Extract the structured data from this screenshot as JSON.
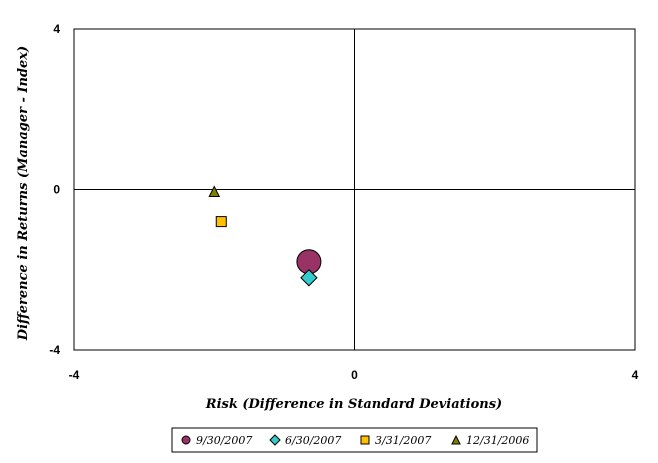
{
  "chart_data": {
    "type": "scatter",
    "title": "",
    "xlabel": "Risk (Difference in Standard Deviations)",
    "ylabel": "Difference in Returns (Manager - Index)",
    "xlim": [
      -4,
      4
    ],
    "ylim": [
      -4,
      4
    ],
    "x_ticks": [
      "-4",
      "0",
      "4"
    ],
    "y_ticks": [
      "4",
      "0",
      "-4"
    ],
    "grid": false,
    "legend_position": "bottom",
    "series": [
      {
        "name": "9/30/2007",
        "marker": "circle",
        "color": "#993366",
        "x": [
          -0.65
        ],
        "y": [
          -1.8
        ]
      },
      {
        "name": "6/30/2007",
        "marker": "diamond",
        "color": "#33CCCC",
        "x": [
          -0.65
        ],
        "y": [
          -2.2
        ]
      },
      {
        "name": "3/31/2007",
        "marker": "square",
        "color": "#FFC000",
        "x": [
          -1.9
        ],
        "y": [
          -0.8
        ]
      },
      {
        "name": "12/31/2006",
        "marker": "triangle",
        "color": "#808000",
        "x": [
          -2.0
        ],
        "y": [
          -0.05
        ]
      }
    ]
  }
}
